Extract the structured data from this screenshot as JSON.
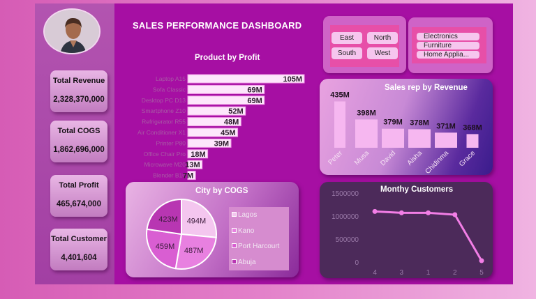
{
  "title": "SALES PERFORMANCE DASHBOARD",
  "kpis": [
    {
      "label": "Total Revenue",
      "value": "2,328,370,000"
    },
    {
      "label": "Total COGS",
      "value": "1,862,696,000"
    },
    {
      "label": "Total Profit",
      "value": "465,674,000"
    },
    {
      "label": "Total Customer",
      "value": "4,401,604"
    }
  ],
  "region_slicer": [
    "East",
    "North",
    "South",
    "West"
  ],
  "category_slicer": [
    "Electronics",
    "Furniture",
    "Home Applia..."
  ],
  "colors": {
    "bar": "#f6b7f0",
    "line": "#f27ee6",
    "frame": "#7d1b80",
    "panel": "#a60fa3"
  },
  "chart_data": [
    {
      "type": "bar",
      "orientation": "horizontal",
      "title": "Product by Profit",
      "categories": [
        "Laptop A15",
        "Sofa Classic",
        "Desktop PC D13",
        "Smartphone Z10",
        "Refrigerator R55",
        "Air Conditioner X1",
        "Printer P80",
        "Office Chair Pro",
        "Microwave M20",
        "Blender B10"
      ],
      "values": [
        105,
        69,
        69,
        52,
        48,
        45,
        39,
        18,
        13,
        7
      ],
      "data_labels": [
        "105M",
        "69M",
        "69M",
        "52M",
        "48M",
        "45M",
        "39M",
        "18M",
        "13M",
        "7M"
      ]
    },
    {
      "type": "bar",
      "title": "Sales rep by Revenue",
      "categories": [
        "Peter",
        "Musa",
        "David",
        "Aisha",
        "Chidinma",
        "Grace"
      ],
      "values": [
        435,
        398,
        379,
        378,
        371,
        368
      ],
      "data_labels": [
        "435M",
        "398M",
        "379M",
        "378M",
        "371M",
        "368M"
      ]
    },
    {
      "type": "pie",
      "title": "City by COGS",
      "categories": [
        "Lagos",
        "Kano",
        "Port Harcourt",
        "Abuja"
      ],
      "values": [
        494,
        487,
        459,
        423
      ],
      "data_labels": [
        "494M",
        "487M",
        "459M",
        "423M"
      ],
      "legend": "right"
    },
    {
      "type": "line",
      "title": "Monthy Customers",
      "categories": [
        "4",
        "3",
        "1",
        "2",
        "5"
      ],
      "values": [
        1100000,
        1070000,
        1070000,
        1030000,
        30000
      ],
      "y_ticks": [
        "1500000",
        "1000000",
        "500000",
        "0"
      ],
      "ylim": [
        0,
        1500000
      ]
    }
  ]
}
